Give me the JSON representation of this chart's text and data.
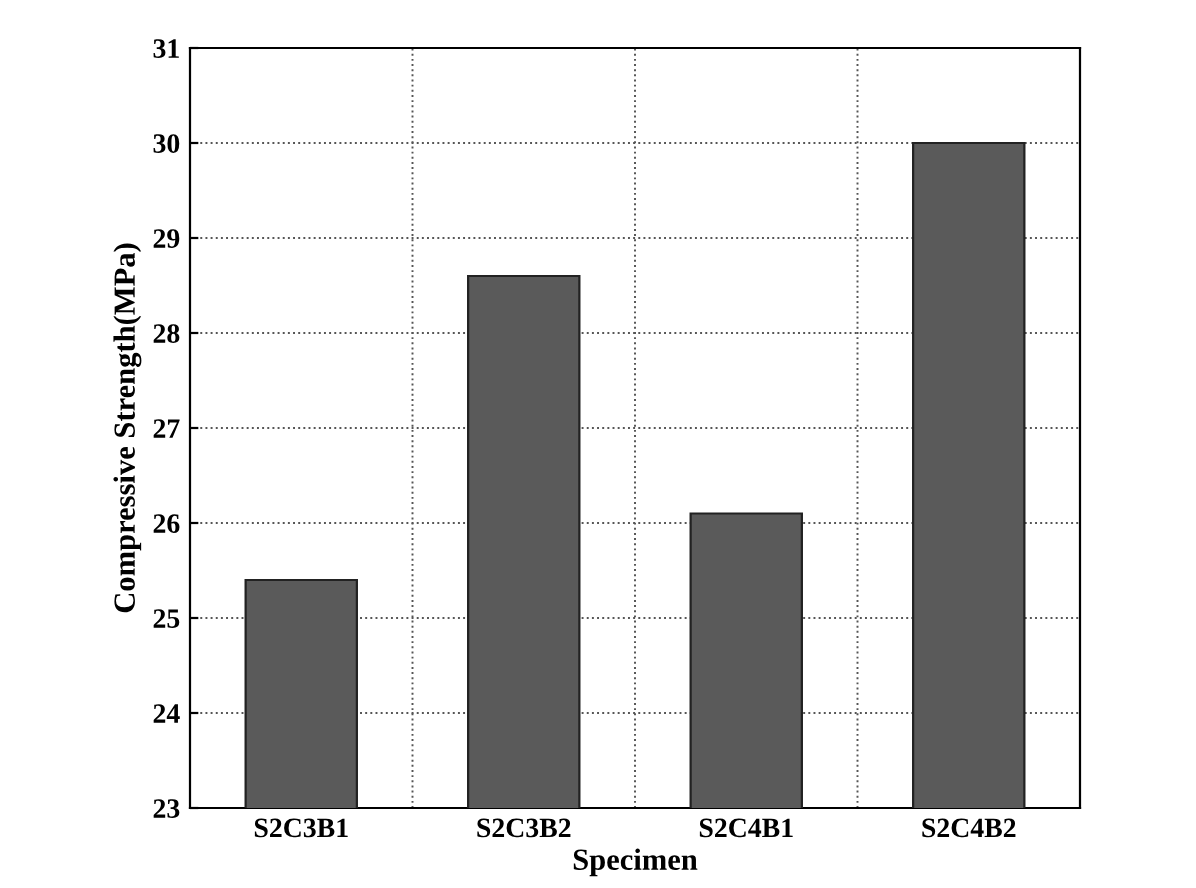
{
  "chart_data": {
    "type": "bar",
    "xlabel": "Specimen",
    "ylabel": "Compressive Strength(MPa)",
    "categories": [
      "S2C3B1",
      "S2C3B2",
      "S2C4B1",
      "S2C4B2"
    ],
    "values": [
      25.4,
      28.6,
      26.1,
      30.0
    ],
    "color": "#5a5a5a",
    "ylim": [
      23,
      31
    ],
    "yticks": [
      23,
      24,
      25,
      26,
      27,
      28,
      29,
      30,
      31
    ],
    "grid": true,
    "line_style": "dotted"
  }
}
